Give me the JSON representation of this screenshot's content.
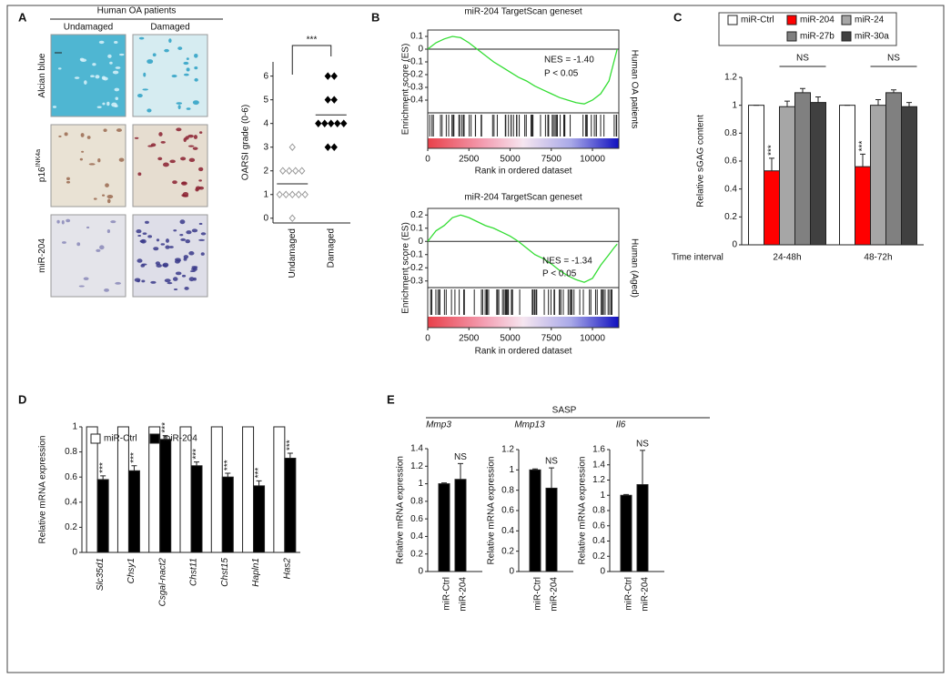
{
  "panel_labels": [
    "A",
    "B",
    "C",
    "D",
    "E"
  ],
  "panel_a": {
    "title": "Human OA patients",
    "columns": [
      "Undamaged",
      "Damaged"
    ],
    "rows": [
      {
        "label": "Alcian blue"
      },
      {
        "label": "p16",
        "superscript": "INK4a"
      },
      {
        "label": "miR-204"
      }
    ]
  },
  "panel_e": {
    "title": "SASP"
  },
  "chart_data": [
    {
      "type": "strip",
      "ylabel": "OARSI grade (0-6)",
      "categories": [
        "Undamaged",
        "Damaged"
      ],
      "values": [
        [
          3,
          2,
          2,
          2,
          2,
          1,
          1,
          1,
          1,
          1,
          0
        ],
        [
          6,
          6,
          5,
          5,
          4,
          4,
          4,
          4,
          4,
          3,
          3
        ]
      ],
      "means": [
        1.45,
        4.36
      ],
      "colors": [
        "#999999",
        "#000000"
      ],
      "ylim": [
        -0.2,
        6.6
      ],
      "yticks": [
        0,
        1,
        2,
        3,
        4,
        5,
        6
      ],
      "annotation": "***"
    },
    {
      "type": "gsea",
      "title": "miR-204 TargetScan geneset",
      "ylabel": "Enrichment score (ES)",
      "xlabel": "Rank in ordered dataset",
      "x": [
        0,
        500,
        1000,
        1500,
        2000,
        2500,
        3000,
        3500,
        4000,
        4500,
        5000,
        5500,
        6000,
        6500,
        7000,
        7500,
        8000,
        8500,
        9000,
        9500,
        10000,
        10500,
        11000,
        11300,
        11500
      ],
      "values": [
        0,
        0.05,
        0.08,
        0.1,
        0.09,
        0.05,
        0.0,
        -0.05,
        -0.1,
        -0.14,
        -0.18,
        -0.22,
        -0.25,
        -0.29,
        -0.32,
        -0.35,
        -0.38,
        -0.4,
        -0.42,
        -0.43,
        -0.4,
        -0.35,
        -0.25,
        -0.1,
        0
      ],
      "color": "#33dd33",
      "xlim": [
        0,
        11600
      ],
      "ylim": [
        -0.5,
        0.15
      ],
      "xticks": [
        0,
        2500,
        5000,
        7500,
        10000
      ],
      "yticks": [
        0.1,
        0,
        -0.1,
        -0.2,
        -0.3,
        -0.4
      ],
      "annotations": [
        "NES = -1.40",
        "P < 0.05"
      ],
      "side_label": "Human OA patients"
    },
    {
      "type": "gsea",
      "title": "miR-204 TargetScan geneset",
      "ylabel": "Enrichment score (ES)",
      "xlabel": "Rank in ordered dataset",
      "x": [
        0,
        500,
        1000,
        1500,
        2000,
        2500,
        3000,
        3500,
        4000,
        4500,
        5000,
        5500,
        6000,
        6500,
        7000,
        7500,
        8000,
        8500,
        9000,
        9500,
        10000,
        10500,
        11000,
        11300,
        11500
      ],
      "values": [
        0,
        0.08,
        0.12,
        0.18,
        0.2,
        0.18,
        0.15,
        0.12,
        0.1,
        0.07,
        0.04,
        0.0,
        -0.05,
        -0.1,
        -0.13,
        -0.17,
        -0.22,
        -0.26,
        -0.29,
        -0.31,
        -0.28,
        -0.18,
        -0.1,
        -0.05,
        -0.02
      ],
      "color": "#33dd33",
      "xlim": [
        0,
        11600
      ],
      "ylim": [
        -0.35,
        0.25
      ],
      "xticks": [
        0,
        2500,
        5000,
        7500,
        10000
      ],
      "yticks": [
        0.2,
        0.1,
        0,
        -0.1,
        -0.2,
        -0.3
      ],
      "annotations": [
        "NES = -1.34",
        "P < 0.05"
      ],
      "side_label": "Human (Aged)"
    },
    {
      "type": "grouped-bar",
      "ylabel": "Relative sGAG content",
      "xlabel": "Time interval",
      "categories": [
        "24-48h",
        "48-72h"
      ],
      "series": [
        {
          "name": "miR-Ctrl",
          "color": "#ffffff",
          "values": [
            1,
            1
          ],
          "errors": [
            0,
            0
          ]
        },
        {
          "name": "miR-204",
          "color": "#ff0000",
          "values": [
            0.53,
            0.56
          ],
          "errors": [
            0.09,
            0.09
          ],
          "labels": [
            "***",
            "***"
          ]
        },
        {
          "name": "miR-24",
          "color": "#a6a6a6",
          "values": [
            0.99,
            1.0
          ],
          "errors": [
            0.04,
            0.04
          ]
        },
        {
          "name": "miR-27b",
          "color": "#808080",
          "values": [
            1.09,
            1.09
          ],
          "errors": [
            0.03,
            0.02
          ]
        },
        {
          "name": "miR-30a",
          "color": "#404040",
          "values": [
            1.02,
            0.99
          ],
          "errors": [
            0.04,
            0.03
          ]
        }
      ],
      "brackets": [
        "NS",
        "NS"
      ],
      "ylim": [
        0,
        1.2
      ],
      "yticks": [
        0,
        0.2,
        0.4,
        0.6,
        0.8,
        1,
        1.2
      ]
    },
    {
      "type": "grouped-bar",
      "ylabel": "Relative mRNA expression",
      "categories": [
        "Slc35d1",
        "Chsy1",
        "Csgal-nact2",
        "Chst11",
        "Chst15",
        "Hapln1",
        "Has2"
      ],
      "series": [
        {
          "name": "miR-Ctrl",
          "color": "#ffffff",
          "values": [
            1,
            1,
            1,
            1,
            1,
            1,
            1
          ],
          "errors": [
            0,
            0,
            0,
            0,
            0,
            0,
            0
          ]
        },
        {
          "name": "miR-204",
          "color": "#000000",
          "values": [
            0.58,
            0.65,
            0.9,
            0.69,
            0.6,
            0.53,
            0.75
          ],
          "errors": [
            0.03,
            0.04,
            0.03,
            0.03,
            0.03,
            0.04,
            0.04
          ],
          "labels": [
            "***",
            "***",
            "***",
            "***",
            "***",
            "***",
            "***"
          ]
        }
      ],
      "ylim": [
        0,
        1
      ],
      "yticks": [
        0,
        0.2,
        0.4,
        0.6,
        0.8,
        1
      ]
    },
    {
      "type": "bar",
      "title": "Mmp3",
      "ylabel": "Relative mRNA expression",
      "categories": [
        "miR-Ctrl",
        "miR-204"
      ],
      "values": [
        1,
        1.05
      ],
      "errors": [
        0.01,
        0.18
      ],
      "labels": [
        null,
        "NS"
      ],
      "color": "#000000",
      "ylim": [
        0,
        1.4
      ],
      "yticks": [
        0,
        0.2,
        0.4,
        0.6,
        0.8,
        1,
        1.2,
        1.4
      ]
    },
    {
      "type": "bar",
      "title": "Mmp13",
      "ylabel": "Relative mRNA expression",
      "categories": [
        "miR-Ctrl",
        "miR-204"
      ],
      "values": [
        1,
        0.82
      ],
      "errors": [
        0.01,
        0.2
      ],
      "labels": [
        null,
        "NS"
      ],
      "color": "#000000",
      "ylim": [
        0,
        1.2
      ],
      "yticks": [
        0,
        0.2,
        0.4,
        0.6,
        0.8,
        1,
        1.2
      ]
    },
    {
      "type": "bar",
      "title": "Il6",
      "ylabel": "Relative mRNA expression",
      "categories": [
        "miR-Ctrl",
        "miR-204"
      ],
      "values": [
        1,
        1.14
      ],
      "errors": [
        0.01,
        0.45
      ],
      "labels": [
        null,
        "NS"
      ],
      "color": "#000000",
      "ylim": [
        0,
        1.6
      ],
      "yticks": [
        0,
        0.2,
        0.4,
        0.6,
        0.8,
        1,
        1.2,
        1.4,
        1.6
      ]
    }
  ]
}
